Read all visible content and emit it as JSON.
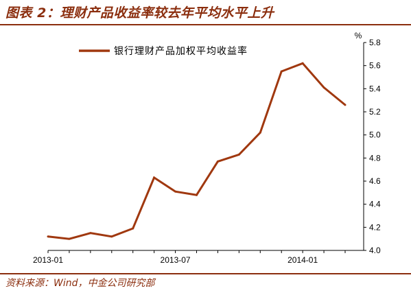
{
  "header": {
    "title": "图表 2：理财产品收益率较去年平均水平上升"
  },
  "footer": {
    "source": "资料来源：Wind，中金公司研究部"
  },
  "colors": {
    "accent": "#8B2E0E",
    "series": "#A0380F"
  },
  "chart_data": {
    "type": "line",
    "title": "",
    "xlabel": "",
    "ylabel": "%",
    "x": [
      "2013-01",
      "2013-02",
      "2013-03",
      "2013-04",
      "2013-05",
      "2013-06",
      "2013-07",
      "2013-08",
      "2013-09",
      "2013-10",
      "2013-11",
      "2013-12",
      "2014-01",
      "2014-02",
      "2014-03"
    ],
    "x_tick_labels": [
      {
        "index": 0,
        "label": "2013-01"
      },
      {
        "index": 6,
        "label": "2013-07"
      },
      {
        "index": 12,
        "label": "2014-01"
      }
    ],
    "series": [
      {
        "name": "银行理财产品加权平均收益率",
        "values": [
          4.12,
          4.1,
          4.15,
          4.12,
          4.19,
          4.63,
          4.51,
          4.48,
          4.77,
          4.83,
          5.02,
          5.55,
          5.62,
          5.41,
          5.26
        ]
      }
    ],
    "ylim": [
      4.0,
      5.8
    ],
    "y_ticks": [
      "4.0",
      "4.2",
      "4.4",
      "4.6",
      "4.8",
      "5.0",
      "5.2",
      "5.4",
      "5.6",
      "5.8"
    ],
    "y_axis_side": "right",
    "grid": false,
    "legend_position": "top-left"
  }
}
